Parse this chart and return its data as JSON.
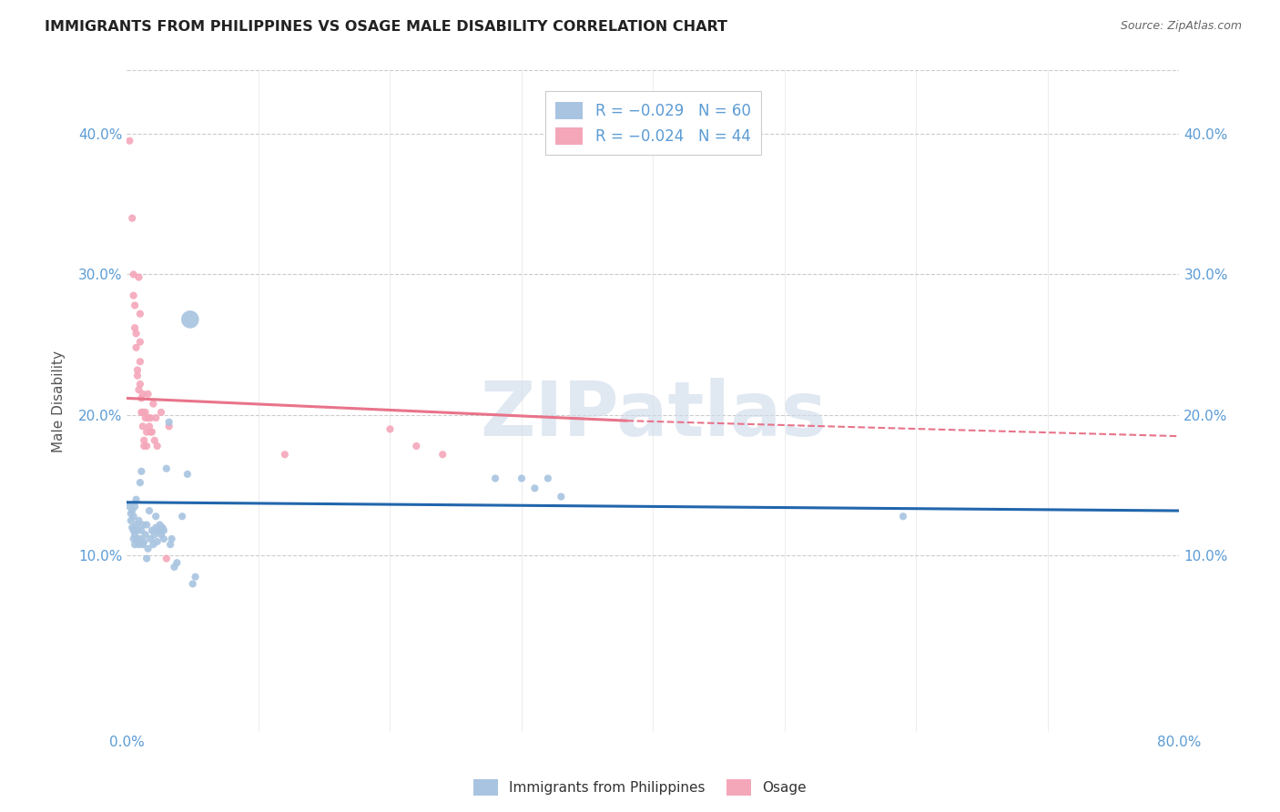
{
  "title": "IMMIGRANTS FROM PHILIPPINES VS OSAGE MALE DISABILITY CORRELATION CHART",
  "source": "Source: ZipAtlas.com",
  "ylabel": "Male Disability",
  "xlim": [
    0.0,
    0.8
  ],
  "ylim": [
    -0.025,
    0.445
  ],
  "yticks": [
    0.1,
    0.2,
    0.3,
    0.4
  ],
  "ytick_labels": [
    "10.0%",
    "20.0%",
    "30.0%",
    "40.0%"
  ],
  "xticks": [
    0.0,
    0.1,
    0.2,
    0.3,
    0.4,
    0.5,
    0.6,
    0.7,
    0.8
  ],
  "xtick_labels": [
    "0.0%",
    "",
    "",
    "",
    "",
    "",
    "",
    "",
    "80.0%"
  ],
  "legend_label1": "Immigrants from Philippines",
  "legend_label2": "Osage",
  "blue_color": "#a8c4e0",
  "pink_color": "#f4a7b9",
  "blue_line_color": "#2166ac",
  "pink_line_color": "#e8748a",
  "title_color": "#222222",
  "axis_color": "#5b9bd5",
  "grid_color": "#cccccc",
  "watermark": "ZIPatlas",
  "blue_scatter": [
    [
      0.002,
      0.135
    ],
    [
      0.003,
      0.13
    ],
    [
      0.003,
      0.125
    ],
    [
      0.004,
      0.132
    ],
    [
      0.004,
      0.12
    ],
    [
      0.005,
      0.128
    ],
    [
      0.005,
      0.118
    ],
    [
      0.005,
      0.112
    ],
    [
      0.006,
      0.135
    ],
    [
      0.006,
      0.115
    ],
    [
      0.006,
      0.108
    ],
    [
      0.007,
      0.14
    ],
    [
      0.007,
      0.122
    ],
    [
      0.008,
      0.118
    ],
    [
      0.008,
      0.112
    ],
    [
      0.009,
      0.125
    ],
    [
      0.009,
      0.108
    ],
    [
      0.01,
      0.152
    ],
    [
      0.01,
      0.112
    ],
    [
      0.011,
      0.16
    ],
    [
      0.011,
      0.118
    ],
    [
      0.012,
      0.122
    ],
    [
      0.012,
      0.108
    ],
    [
      0.013,
      0.11
    ],
    [
      0.014,
      0.115
    ],
    [
      0.015,
      0.122
    ],
    [
      0.015,
      0.098
    ],
    [
      0.016,
      0.105
    ],
    [
      0.017,
      0.132
    ],
    [
      0.018,
      0.112
    ],
    [
      0.019,
      0.118
    ],
    [
      0.02,
      0.108
    ],
    [
      0.021,
      0.115
    ],
    [
      0.022,
      0.12
    ],
    [
      0.022,
      0.128
    ],
    [
      0.023,
      0.11
    ],
    [
      0.024,
      0.118
    ],
    [
      0.025,
      0.122
    ],
    [
      0.026,
      0.118
    ],
    [
      0.026,
      0.115
    ],
    [
      0.027,
      0.12
    ],
    [
      0.028,
      0.112
    ],
    [
      0.028,
      0.118
    ],
    [
      0.03,
      0.162
    ],
    [
      0.032,
      0.195
    ],
    [
      0.033,
      0.108
    ],
    [
      0.034,
      0.112
    ],
    [
      0.036,
      0.092
    ],
    [
      0.038,
      0.095
    ],
    [
      0.042,
      0.128
    ],
    [
      0.046,
      0.158
    ],
    [
      0.048,
      0.268
    ],
    [
      0.05,
      0.08
    ],
    [
      0.052,
      0.085
    ],
    [
      0.28,
      0.155
    ],
    [
      0.3,
      0.155
    ],
    [
      0.31,
      0.148
    ],
    [
      0.32,
      0.155
    ],
    [
      0.33,
      0.142
    ],
    [
      0.59,
      0.128
    ]
  ],
  "pink_scatter": [
    [
      0.002,
      0.395
    ],
    [
      0.004,
      0.34
    ],
    [
      0.006,
      0.278
    ],
    [
      0.005,
      0.3
    ],
    [
      0.005,
      0.285
    ],
    [
      0.006,
      0.262
    ],
    [
      0.007,
      0.248
    ],
    [
      0.007,
      0.258
    ],
    [
      0.008,
      0.232
    ],
    [
      0.008,
      0.228
    ],
    [
      0.009,
      0.218
    ],
    [
      0.009,
      0.298
    ],
    [
      0.01,
      0.272
    ],
    [
      0.01,
      0.252
    ],
    [
      0.01,
      0.238
    ],
    [
      0.01,
      0.222
    ],
    [
      0.011,
      0.212
    ],
    [
      0.011,
      0.202
    ],
    [
      0.012,
      0.215
    ],
    [
      0.012,
      0.202
    ],
    [
      0.012,
      0.192
    ],
    [
      0.013,
      0.182
    ],
    [
      0.013,
      0.178
    ],
    [
      0.014,
      0.202
    ],
    [
      0.014,
      0.198
    ],
    [
      0.015,
      0.188
    ],
    [
      0.015,
      0.178
    ],
    [
      0.016,
      0.215
    ],
    [
      0.016,
      0.198
    ],
    [
      0.017,
      0.192
    ],
    [
      0.018,
      0.198
    ],
    [
      0.018,
      0.188
    ],
    [
      0.019,
      0.188
    ],
    [
      0.02,
      0.208
    ],
    [
      0.021,
      0.182
    ],
    [
      0.022,
      0.198
    ],
    [
      0.023,
      0.178
    ],
    [
      0.026,
      0.202
    ],
    [
      0.032,
      0.192
    ],
    [
      0.2,
      0.19
    ],
    [
      0.22,
      0.178
    ],
    [
      0.24,
      0.172
    ],
    [
      0.03,
      0.098
    ],
    [
      0.12,
      0.172
    ]
  ],
  "blue_sizes": [
    35,
    35,
    35,
    35,
    35,
    35,
    35,
    35,
    35,
    35,
    35,
    35,
    35,
    35,
    35,
    35,
    35,
    35,
    35,
    35,
    35,
    35,
    35,
    35,
    35,
    35,
    35,
    35,
    35,
    35,
    35,
    35,
    35,
    35,
    35,
    35,
    35,
    35,
    35,
    35,
    35,
    35,
    35,
    35,
    35,
    35,
    35,
    35,
    35,
    35,
    35,
    200,
    35,
    35,
    35,
    35,
    35,
    35,
    35,
    35
  ],
  "pink_sizes": [
    35,
    35,
    35,
    35,
    35,
    35,
    35,
    35,
    35,
    35,
    35,
    35,
    35,
    35,
    35,
    35,
    35,
    35,
    35,
    35,
    35,
    35,
    35,
    35,
    35,
    35,
    35,
    35,
    35,
    35,
    35,
    35,
    35,
    35,
    35,
    35,
    35,
    35,
    35,
    35,
    35,
    35,
    35,
    35
  ],
  "blue_line": {
    "x0": 0.0,
    "y0": 0.138,
    "x1": 0.8,
    "y1": 0.132
  },
  "pink_line_solid": {
    "x0": 0.0,
    "y0": 0.212,
    "x1": 0.38,
    "y1": 0.196
  },
  "pink_line_dashed": {
    "x0": 0.38,
    "y0": 0.196,
    "x1": 0.8,
    "y1": 0.185
  }
}
